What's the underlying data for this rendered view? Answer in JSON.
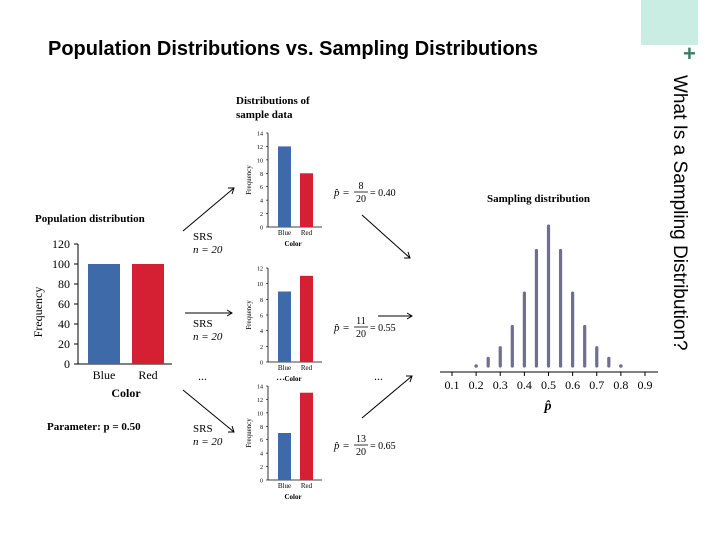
{
  "slide": {
    "title": "Population Distributions vs. Sampling Distributions",
    "side_title": "What Is a Sampling Distribution?"
  },
  "colors": {
    "blue": "#3e6aaa",
    "red": "#d42032",
    "dots": "#6f6e8c",
    "accent": "#c9ece3"
  },
  "population": {
    "title": "Population distribution",
    "ylabel": "Frequency",
    "xlabel": "Color",
    "yticks": [
      "0",
      "20",
      "40",
      "60",
      "80",
      "100",
      "120"
    ],
    "categories": [
      "Blue",
      "Red"
    ],
    "values": [
      100,
      100
    ],
    "parameter": "Parameter: p = 0.50"
  },
  "samples_heading": [
    "Distributions of",
    "sample data"
  ],
  "srs": {
    "line1": "SRS",
    "line2": "n = 20"
  },
  "ellipsis": "...",
  "samples": [
    {
      "categories": [
        "Blue",
        "Red"
      ],
      "values": [
        12,
        8
      ],
      "yticks": [
        "0",
        "2",
        "4",
        "6",
        "8",
        "10",
        "12",
        "14"
      ],
      "ylabel": "Frequency",
      "xlabel": "Color",
      "num": "8",
      "den": "20",
      "result": "= 0.40"
    },
    {
      "categories": [
        "Blue",
        "Red"
      ],
      "values": [
        9,
        11
      ],
      "yticks": [
        "0",
        "2",
        "4",
        "6",
        "8",
        "10",
        "12"
      ],
      "ylabel": "Frequency",
      "xlabel": "Color",
      "num": "11",
      "den": "20",
      "result": "= 0.55"
    },
    {
      "categories": [
        "Blue",
        "Red"
      ],
      "values": [
        7,
        13
      ],
      "yticks": [
        "0",
        "2",
        "4",
        "6",
        "8",
        "10",
        "12",
        "14"
      ],
      "ylabel": "Frequency",
      "xlabel": "Color",
      "num": "13",
      "den": "20",
      "result": "= 0.65"
    }
  ],
  "sampling": {
    "title": "Sampling distribution",
    "xlabel": "p̂",
    "xticks": [
      "0.1",
      "0.2",
      "0.3",
      "0.4",
      "0.5",
      "0.6",
      "0.7",
      "0.8",
      "0.9"
    ],
    "points": [
      {
        "x": 0.2,
        "f": 2
      },
      {
        "x": 0.25,
        "f": 5
      },
      {
        "x": 0.3,
        "f": 12
      },
      {
        "x": 0.35,
        "f": 26
      },
      {
        "x": 0.4,
        "f": 48
      },
      {
        "x": 0.45,
        "f": 76
      },
      {
        "x": 0.5,
        "f": 92
      },
      {
        "x": 0.55,
        "f": 76
      },
      {
        "x": 0.6,
        "f": 48
      },
      {
        "x": 0.65,
        "f": 26
      },
      {
        "x": 0.7,
        "f": 12
      },
      {
        "x": 0.75,
        "f": 5
      },
      {
        "x": 0.8,
        "f": 2
      }
    ]
  }
}
